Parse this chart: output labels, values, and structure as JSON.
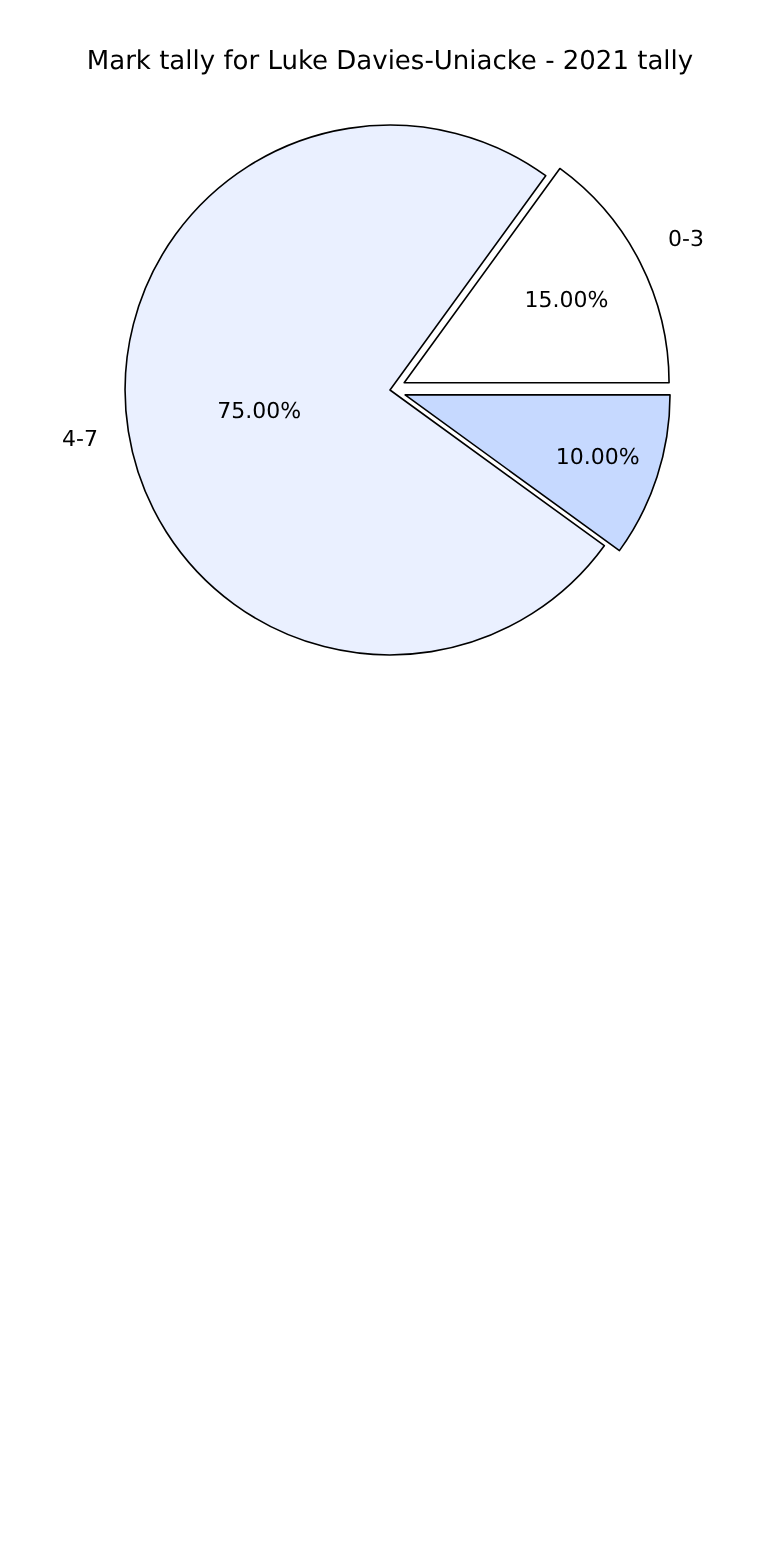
{
  "chart_data": {
    "type": "pie",
    "title": "Mark tally for Luke Davies-Uniacke - 2021 tally",
    "categories": [
      "0-3",
      "4-7",
      null
    ],
    "values": [
      15,
      75,
      10
    ],
    "colors": [
      "#ffffff",
      "#eaf0ff",
      "#c6d9ff"
    ],
    "value_labels": [
      "15.00%",
      "75.00%",
      "10.00%"
    ],
    "legend": false
  }
}
